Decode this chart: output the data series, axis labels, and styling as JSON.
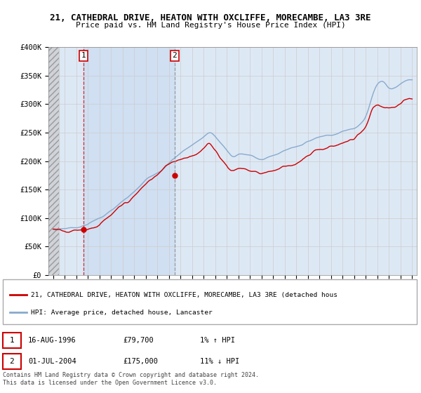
{
  "title": "21, CATHEDRAL DRIVE, HEATON WITH OXCLIFFE, MORECAMBE, LA3 3RE",
  "subtitle": "Price paid vs. HM Land Registry's House Price Index (HPI)",
  "ylim": [
    0,
    400000
  ],
  "yticks": [
    0,
    50000,
    100000,
    150000,
    200000,
    250000,
    300000,
    350000,
    400000
  ],
  "ytick_labels": [
    "£0",
    "£50K",
    "£100K",
    "£150K",
    "£200K",
    "£250K",
    "£300K",
    "£350K",
    "£400K"
  ],
  "xlim_start": 1993.6,
  "xlim_end": 2025.4,
  "sale1_year": 1996.62,
  "sale1_price": 79700,
  "sale2_year": 2004.5,
  "sale2_price": 175000,
  "sale1_label": "1",
  "sale2_label": "2",
  "sale1_date": "16-AUG-1996",
  "sale1_amount": "£79,700",
  "sale1_hpi": "1% ↑ HPI",
  "sale2_date": "01-JUL-2004",
  "sale2_amount": "£175,000",
  "sale2_hpi": "11% ↓ HPI",
  "legend1_text": "21, CATHEDRAL DRIVE, HEATON WITH OXCLIFFE, MORECAMBE, LA3 3RE (detached hous",
  "legend2_text": "HPI: Average price, detached house, Lancaster",
  "footer": "Contains HM Land Registry data © Crown copyright and database right 2024.\nThis data is licensed under the Open Government Licence v3.0.",
  "line_color_red": "#cc0000",
  "line_color_blue": "#88aacc",
  "bg_color": "#dde8f5",
  "hatch_region_end": 1994.5,
  "highlight_region_start": 1996.62,
  "highlight_region_end": 2004.5
}
